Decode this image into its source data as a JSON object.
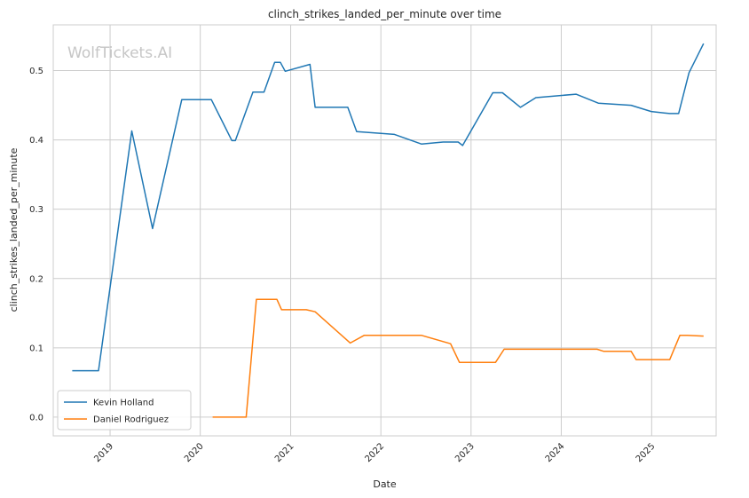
{
  "chart_data": {
    "type": "line",
    "title": "clinch_strikes_landed_per_minute over time",
    "xlabel": "Date",
    "ylabel": "clinch_strikes_landed_per_minute",
    "watermark": "WolfTickets.AI",
    "x_ticks": [
      "2019",
      "2020",
      "2021",
      "2022",
      "2023",
      "2024",
      "2025"
    ],
    "y_ticks": [
      "0.0",
      "0.1",
      "0.2",
      "0.3",
      "0.4",
      "0.5"
    ],
    "xlim": [
      "2018-05-16",
      "2025-09-19"
    ],
    "ylim": [
      -0.027,
      0.566
    ],
    "grid": true,
    "legend_position": "lower-left",
    "series": [
      {
        "name": "Kevin Holland",
        "color": "#1f77b4",
        "points": [
          [
            "2018-08-01",
            0.067
          ],
          [
            "2018-11-15",
            0.067
          ],
          [
            "2019-03-30",
            0.413
          ],
          [
            "2019-06-22",
            0.272
          ],
          [
            "2019-10-18",
            0.458
          ],
          [
            "2020-01-20",
            0.458
          ],
          [
            "2020-02-15",
            0.458
          ],
          [
            "2020-05-08",
            0.399
          ],
          [
            "2020-05-22",
            0.399
          ],
          [
            "2020-08-01",
            0.469
          ],
          [
            "2020-09-15",
            0.469
          ],
          [
            "2020-10-28",
            0.512
          ],
          [
            "2020-11-20",
            0.512
          ],
          [
            "2020-12-10",
            0.499
          ],
          [
            "2021-03-20",
            0.509
          ],
          [
            "2021-04-10",
            0.447
          ],
          [
            "2021-08-20",
            0.447
          ],
          [
            "2021-09-25",
            0.412
          ],
          [
            "2022-02-25",
            0.408
          ],
          [
            "2022-06-15",
            0.394
          ],
          [
            "2022-09-10",
            0.397
          ],
          [
            "2022-11-10",
            0.397
          ],
          [
            "2022-11-28",
            0.392
          ],
          [
            "2023-03-30",
            0.468
          ],
          [
            "2023-05-08",
            0.468
          ],
          [
            "2023-07-20",
            0.447
          ],
          [
            "2023-09-20",
            0.461
          ],
          [
            "2024-03-01",
            0.466
          ],
          [
            "2024-05-30",
            0.453
          ],
          [
            "2024-10-10",
            0.45
          ],
          [
            "2024-12-30",
            0.441
          ],
          [
            "2025-02-20",
            0.439
          ],
          [
            "2025-03-15",
            0.438
          ],
          [
            "2025-04-20",
            0.438
          ],
          [
            "2025-06-01",
            0.497
          ],
          [
            "2025-07-30",
            0.539
          ]
        ]
      },
      {
        "name": "Daniel Rodriguez",
        "color": "#ff7f0e",
        "points": [
          [
            "2020-02-20",
            0.0
          ],
          [
            "2020-07-05",
            0.0
          ],
          [
            "2020-08-15",
            0.17
          ],
          [
            "2020-11-06",
            0.17
          ],
          [
            "2020-11-25",
            0.155
          ],
          [
            "2021-03-05",
            0.155
          ],
          [
            "2021-04-10",
            0.152
          ],
          [
            "2021-08-30",
            0.107
          ],
          [
            "2021-10-25",
            0.118
          ],
          [
            "2022-06-15",
            0.118
          ],
          [
            "2022-10-10",
            0.106
          ],
          [
            "2022-11-15",
            0.079
          ],
          [
            "2023-04-10",
            0.079
          ],
          [
            "2023-05-15",
            0.098
          ],
          [
            "2024-05-25",
            0.098
          ],
          [
            "2024-06-20",
            0.095
          ],
          [
            "2024-10-10",
            0.095
          ],
          [
            "2024-10-30",
            0.083
          ],
          [
            "2025-03-15",
            0.083
          ],
          [
            "2025-04-25",
            0.118
          ],
          [
            "2025-05-25",
            0.118
          ],
          [
            "2025-07-30",
            0.117
          ]
        ]
      }
    ]
  }
}
